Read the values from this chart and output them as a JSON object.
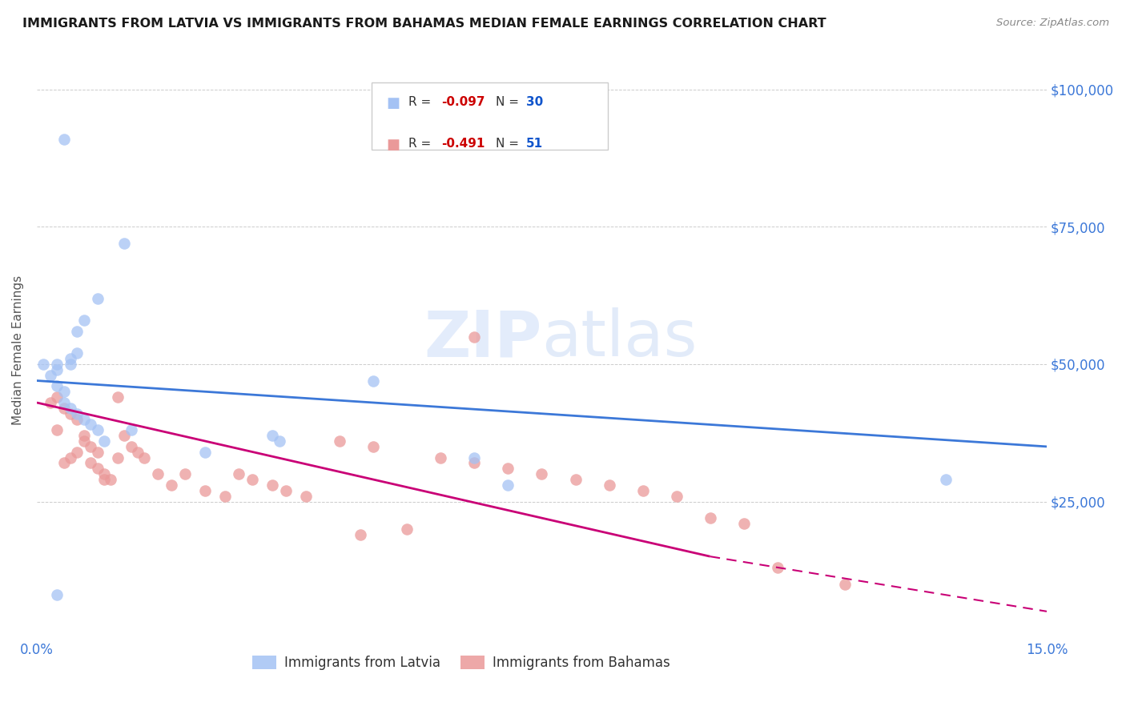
{
  "title": "IMMIGRANTS FROM LATVIA VS IMMIGRANTS FROM BAHAMAS MEDIAN FEMALE EARNINGS CORRELATION CHART",
  "source": "Source: ZipAtlas.com",
  "ylabel": "Median Female Earnings",
  "xmin": 0.0,
  "xmax": 0.15,
  "ymin": 0,
  "ymax": 105000,
  "latvia_R": -0.097,
  "latvia_N": 30,
  "bahamas_R": -0.491,
  "bahamas_N": 51,
  "latvia_color": "#a4c2f4",
  "bahamas_color": "#ea9999",
  "latvia_line_color": "#3c78d8",
  "bahamas_line_color": "#c90076",
  "watermark_color": "#c9daf8",
  "legend_R_color": "#cc0000",
  "legend_N_color": "#1155cc",
  "latvia_x": [
    0.001,
    0.002,
    0.003,
    0.003,
    0.003,
    0.004,
    0.004,
    0.004,
    0.005,
    0.005,
    0.005,
    0.006,
    0.006,
    0.006,
    0.007,
    0.007,
    0.008,
    0.009,
    0.009,
    0.01,
    0.013,
    0.014,
    0.025,
    0.035,
    0.036,
    0.05,
    0.065,
    0.07,
    0.135,
    0.003
  ],
  "latvia_y": [
    50000,
    48000,
    50000,
    49000,
    46000,
    45000,
    43000,
    91000,
    51000,
    50000,
    42000,
    56000,
    52000,
    41000,
    58000,
    40000,
    39000,
    62000,
    38000,
    36000,
    72000,
    38000,
    34000,
    37000,
    36000,
    47000,
    33000,
    28000,
    29000,
    8000
  ],
  "bahamas_x": [
    0.002,
    0.003,
    0.003,
    0.004,
    0.004,
    0.005,
    0.005,
    0.006,
    0.006,
    0.007,
    0.007,
    0.008,
    0.008,
    0.009,
    0.009,
    0.01,
    0.01,
    0.011,
    0.012,
    0.012,
    0.013,
    0.014,
    0.015,
    0.016,
    0.018,
    0.02,
    0.022,
    0.025,
    0.028,
    0.03,
    0.032,
    0.035,
    0.037,
    0.04,
    0.045,
    0.048,
    0.05,
    0.055,
    0.06,
    0.065,
    0.07,
    0.075,
    0.08,
    0.085,
    0.09,
    0.095,
    0.1,
    0.105,
    0.11,
    0.12,
    0.065
  ],
  "bahamas_y": [
    43000,
    44000,
    38000,
    42000,
    32000,
    41000,
    33000,
    40000,
    34000,
    37000,
    36000,
    35000,
    32000,
    34000,
    31000,
    30000,
    29000,
    29000,
    44000,
    33000,
    37000,
    35000,
    34000,
    33000,
    30000,
    28000,
    30000,
    27000,
    26000,
    30000,
    29000,
    28000,
    27000,
    26000,
    36000,
    19000,
    35000,
    20000,
    33000,
    32000,
    31000,
    30000,
    29000,
    28000,
    27000,
    26000,
    22000,
    21000,
    13000,
    10000,
    55000
  ]
}
